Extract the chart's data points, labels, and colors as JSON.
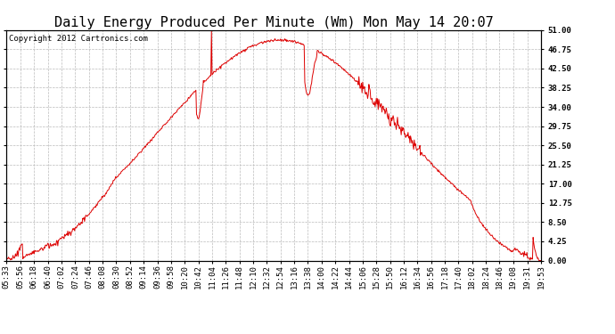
{
  "title": "Daily Energy Produced Per Minute (Wm) Mon May 14 20:07",
  "copyright": "Copyright 2012 Cartronics.com",
  "ymax": 51.0,
  "ymin": 0.0,
  "yticks": [
    0,
    4.25,
    8.5,
    12.75,
    17.0,
    21.25,
    25.5,
    29.75,
    34.0,
    38.25,
    42.5,
    46.75,
    51.0
  ],
  "line_color": "#dd0000",
  "bg_color": "#ffffff",
  "grid_color": "#bbbbbb",
  "title_fontsize": 11,
  "copyright_fontsize": 6.5,
  "tick_fontsize": 6.5,
  "x_labels": [
    "05:33",
    "05:56",
    "06:18",
    "06:40",
    "07:02",
    "07:24",
    "07:46",
    "08:08",
    "08:30",
    "08:52",
    "09:14",
    "09:36",
    "09:58",
    "10:20",
    "10:42",
    "11:04",
    "11:26",
    "11:48",
    "12:10",
    "12:32",
    "12:54",
    "13:16",
    "13:38",
    "14:00",
    "14:22",
    "14:44",
    "15:06",
    "15:28",
    "15:50",
    "16:12",
    "16:34",
    "16:56",
    "17:18",
    "17:40",
    "18:02",
    "18:24",
    "18:46",
    "19:08",
    "19:31",
    "19:53"
  ]
}
